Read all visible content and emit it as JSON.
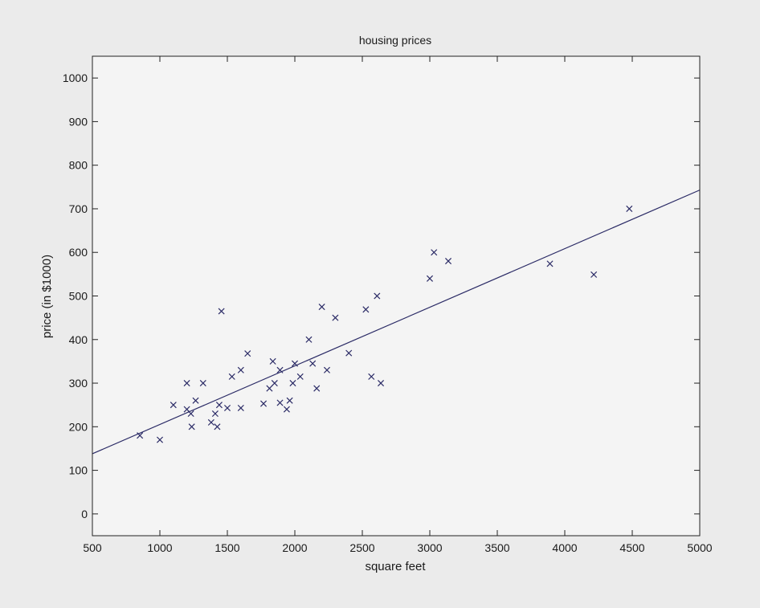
{
  "chart_data": {
    "type": "scatter",
    "title": "housing prices",
    "xlabel": "square feet",
    "ylabel": "price (in $1000)",
    "xlim": [
      500,
      5000
    ],
    "ylim": [
      -50,
      1050
    ],
    "xticks": [
      500,
      1000,
      1500,
      2000,
      2500,
      3000,
      3500,
      4000,
      4500,
      5000
    ],
    "yticks": [
      0,
      100,
      200,
      300,
      400,
      500,
      600,
      700,
      800,
      900,
      1000
    ],
    "grid": false,
    "colors": {
      "marker": "#2b2b66",
      "line": "#2b2b66",
      "axes": "#222222",
      "plot_bg": "#f4f4f4"
    },
    "series": [
      {
        "marker": "x",
        "points": [
          [
            852,
            180
          ],
          [
            1000,
            170
          ],
          [
            1100,
            250
          ],
          [
            1200,
            300
          ],
          [
            1200,
            240
          ],
          [
            1230,
            230
          ],
          [
            1236,
            200
          ],
          [
            1265,
            260
          ],
          [
            1320,
            300
          ],
          [
            1380,
            210
          ],
          [
            1410,
            230
          ],
          [
            1425,
            200
          ],
          [
            1440,
            250
          ],
          [
            1456,
            465
          ],
          [
            1500,
            243
          ],
          [
            1534,
            315
          ],
          [
            1600,
            330
          ],
          [
            1600,
            243
          ],
          [
            1650,
            368
          ],
          [
            1768,
            253
          ],
          [
            1812,
            288
          ],
          [
            1837,
            350
          ],
          [
            1850,
            300
          ],
          [
            1890,
            330
          ],
          [
            1890,
            255
          ],
          [
            1940,
            240
          ],
          [
            1962,
            260
          ],
          [
            1985,
            300
          ],
          [
            2000,
            345
          ],
          [
            2040,
            315
          ],
          [
            2104,
            400
          ],
          [
            2132,
            345
          ],
          [
            2162,
            288
          ],
          [
            2200,
            475
          ],
          [
            2238,
            330
          ],
          [
            2300,
            450
          ],
          [
            2400,
            369
          ],
          [
            2526,
            469
          ],
          [
            2567,
            315
          ],
          [
            2609,
            500
          ],
          [
            2637,
            300
          ],
          [
            3000,
            540
          ],
          [
            3031,
            600
          ],
          [
            3137,
            580
          ],
          [
            3890,
            574
          ],
          [
            4215,
            549
          ],
          [
            4478,
            700
          ]
        ]
      },
      {
        "type": "line",
        "x": [
          500,
          5000
        ],
        "y": [
          138,
          743
        ]
      }
    ]
  }
}
